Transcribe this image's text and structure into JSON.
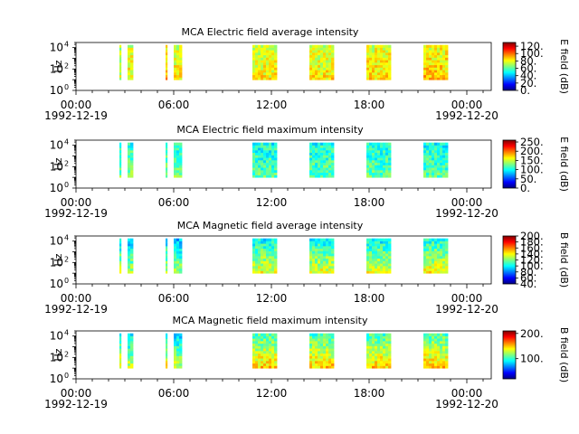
{
  "colors": {
    "background": "#ffffff",
    "axis": "#000000",
    "colormap_jet": [
      "#00007f",
      "#0000ff",
      "#007fff",
      "#00ffff",
      "#7fff7f",
      "#ffff00",
      "#ff7f00",
      "#ff0000",
      "#7f0000"
    ]
  },
  "chart_data": [
    {
      "type": "heatmap",
      "title": "MCA  Electric field average intensity",
      "ylabel": "Hz",
      "y_scale": "log",
      "ylim": [
        1,
        30000
      ],
      "y_tick_labels": [
        "10^0",
        "10^2",
        "10^4"
      ],
      "x_tick_labels": [
        "00:00",
        "06:00",
        "12:00",
        "18:00",
        "00:00"
      ],
      "x_date_labels": [
        "1992-12-19",
        "1992-12-20"
      ],
      "xlim": [
        "1992-12-19T00:00",
        "1992-12-20T01:30"
      ],
      "colorbar": {
        "label": "E field (dB)",
        "range": [
          0,
          130
        ],
        "ticks": [
          "0.",
          "20.",
          "40.",
          "60.",
          "80.",
          "100.",
          "120."
        ]
      },
      "data_segments": [
        {
          "start": "1992-12-19T02:40",
          "end": "1992-12-19T02:46",
          "level": 0.55
        },
        {
          "start": "1992-12-19T03:10",
          "end": "1992-12-19T03:30",
          "level": 0.6
        },
        {
          "start": "1992-12-19T05:30",
          "end": "1992-12-19T05:36",
          "level": 0.65
        },
        {
          "start": "1992-12-19T06:00",
          "end": "1992-12-19T06:30",
          "level": 0.6
        },
        {
          "start": "1992-12-19T10:50",
          "end": "1992-12-19T12:20",
          "level": 0.6
        },
        {
          "start": "1992-12-19T14:20",
          "end": "1992-12-19T15:50",
          "level": 0.6
        },
        {
          "start": "1992-12-19T17:50",
          "end": "1992-12-19T19:20",
          "level": 0.62
        },
        {
          "start": "1992-12-19T21:20",
          "end": "1992-12-19T22:50",
          "level": 0.64
        }
      ]
    },
    {
      "type": "heatmap",
      "title": "MCA  Electric field maximum intensity",
      "ylabel": "Hz",
      "y_scale": "log",
      "ylim": [
        1,
        30000
      ],
      "y_tick_labels": [
        "10^0",
        "10^2",
        "10^4"
      ],
      "x_tick_labels": [
        "00:00",
        "06:00",
        "12:00",
        "18:00",
        "00:00"
      ],
      "x_date_labels": [
        "1992-12-19",
        "1992-12-20"
      ],
      "xlim": [
        "1992-12-19T00:00",
        "1992-12-20T01:30"
      ],
      "colorbar": {
        "label": "E field (dB)",
        "range": [
          0,
          260
        ],
        "ticks": [
          "0.",
          "50.",
          "100.",
          "150.",
          "200.",
          "250."
        ]
      },
      "data_segments": [
        {
          "start": "1992-12-19T02:40",
          "end": "1992-12-19T02:46",
          "level": 0.45
        },
        {
          "start": "1992-12-19T03:10",
          "end": "1992-12-19T03:30",
          "level": 0.45
        },
        {
          "start": "1992-12-19T05:30",
          "end": "1992-12-19T05:36",
          "level": 0.45
        },
        {
          "start": "1992-12-19T06:00",
          "end": "1992-12-19T06:30",
          "level": 0.45
        },
        {
          "start": "1992-12-19T10:50",
          "end": "1992-12-19T12:20",
          "level": 0.42
        },
        {
          "start": "1992-12-19T14:20",
          "end": "1992-12-19T15:50",
          "level": 0.43
        },
        {
          "start": "1992-12-19T17:50",
          "end": "1992-12-19T19:20",
          "level": 0.43
        },
        {
          "start": "1992-12-19T21:20",
          "end": "1992-12-19T22:50",
          "level": 0.42
        }
      ]
    },
    {
      "type": "heatmap",
      "title": "MCA  Magnetic field average intensity",
      "ylabel": "Hz",
      "y_scale": "log",
      "ylim": [
        1,
        30000
      ],
      "y_tick_labels": [
        "10^0",
        "10^2",
        "10^4"
      ],
      "x_tick_labels": [
        "00:00",
        "06:00",
        "12:00",
        "18:00",
        "00:00"
      ],
      "x_date_labels": [
        "1992-12-19",
        "1992-12-20"
      ],
      "xlim": [
        "1992-12-19T00:00",
        "1992-12-20T01:30"
      ],
      "colorbar": {
        "label": "B field (dB)",
        "range": [
          40,
          200
        ],
        "ticks": [
          "40.",
          "60.",
          "80.",
          "100.",
          "120.",
          "140.",
          "160.",
          "180.",
          "200."
        ]
      },
      "data_segments": [
        {
          "start": "1992-12-19T02:40",
          "end": "1992-12-19T02:46",
          "level": 0.45
        },
        {
          "start": "1992-12-19T03:10",
          "end": "1992-12-19T03:30",
          "level": 0.42
        },
        {
          "start": "1992-12-19T05:30",
          "end": "1992-12-19T05:36",
          "level": 0.45
        },
        {
          "start": "1992-12-19T06:00",
          "end": "1992-12-19T06:30",
          "level": 0.42
        },
        {
          "start": "1992-12-19T10:50",
          "end": "1992-12-19T12:20",
          "level": 0.48
        },
        {
          "start": "1992-12-19T14:20",
          "end": "1992-12-19T15:50",
          "level": 0.48
        },
        {
          "start": "1992-12-19T17:50",
          "end": "1992-12-19T19:20",
          "level": 0.48
        },
        {
          "start": "1992-12-19T21:20",
          "end": "1992-12-19T22:50",
          "level": 0.5
        }
      ]
    },
    {
      "type": "heatmap",
      "title": "MCA  Magnetic field maximum intensity",
      "ylabel": "Hz",
      "y_scale": "log",
      "ylim": [
        1,
        30000
      ],
      "y_tick_labels": [
        "10^0",
        "10^2",
        "10^4"
      ],
      "x_tick_labels": [
        "00:00",
        "06:00",
        "12:00",
        "18:00",
        "00:00"
      ],
      "x_date_labels": [
        "1992-12-19",
        "1992-12-20"
      ],
      "xlim": [
        "1992-12-19T00:00",
        "1992-12-20T01:30"
      ],
      "colorbar": {
        "label": "B field (dB)",
        "range": [
          20,
          210
        ],
        "ticks": [
          "100.",
          "200."
        ]
      },
      "data_segments": [
        {
          "start": "1992-12-19T02:40",
          "end": "1992-12-19T02:46",
          "level": 0.5
        },
        {
          "start": "1992-12-19T03:10",
          "end": "1992-12-19T03:30",
          "level": 0.45
        },
        {
          "start": "1992-12-19T05:30",
          "end": "1992-12-19T05:36",
          "level": 0.5
        },
        {
          "start": "1992-12-19T06:00",
          "end": "1992-12-19T06:30",
          "level": 0.45
        },
        {
          "start": "1992-12-19T10:50",
          "end": "1992-12-19T12:20",
          "level": 0.55
        },
        {
          "start": "1992-12-19T14:20",
          "end": "1992-12-19T15:50",
          "level": 0.55
        },
        {
          "start": "1992-12-19T17:50",
          "end": "1992-12-19T19:20",
          "level": 0.55
        },
        {
          "start": "1992-12-19T21:20",
          "end": "1992-12-19T22:50",
          "level": 0.56
        }
      ]
    }
  ]
}
